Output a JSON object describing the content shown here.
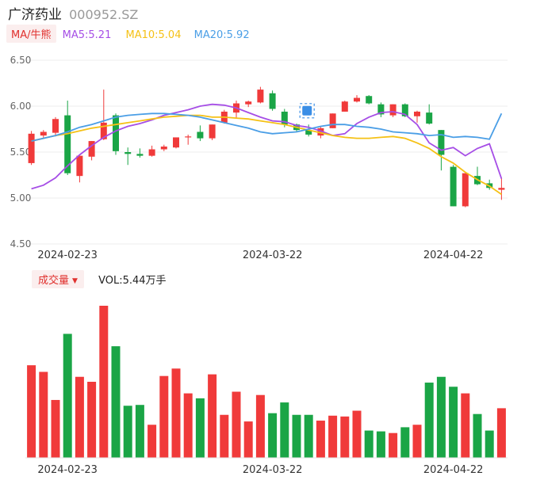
{
  "header": {
    "stock_name": "广济药业",
    "stock_code": "000952.SZ"
  },
  "ma_legend": {
    "selector_label": "MA/牛熊",
    "items": [
      {
        "label": "MA5:5.21",
        "color": "#a64ee6"
      },
      {
        "label": "MA10:5.04",
        "color": "#f5c116"
      },
      {
        "label": "MA20:5.92",
        "color": "#4a9ee6"
      }
    ]
  },
  "volume_panel": {
    "selector_label": "成交量",
    "value_label": "VOL:5.44万手"
  },
  "colors": {
    "up": "#f03a3a",
    "down": "#1aa546",
    "grid": "#eeeeee"
  },
  "chart_data": [
    {
      "type": "candlestick",
      "name": "price",
      "ylim": [
        4.5,
        6.5
      ],
      "yticks": [
        "6.50",
        "6.00",
        "5.50",
        "5.00",
        "4.50"
      ],
      "x_tick_labels": [
        "2024-02-23",
        "2024-03-22",
        "2024-04-22"
      ],
      "x_tick_indices": [
        3,
        20,
        35
      ],
      "candles": [
        {
          "o": 5.38,
          "h": 5.73,
          "l": 5.36,
          "c": 5.7
        },
        {
          "o": 5.68,
          "h": 5.74,
          "l": 5.65,
          "c": 5.72
        },
        {
          "o": 5.71,
          "h": 5.88,
          "l": 5.67,
          "c": 5.86
        },
        {
          "o": 5.9,
          "h": 6.06,
          "l": 5.25,
          "c": 5.27
        },
        {
          "o": 5.24,
          "h": 5.46,
          "l": 5.17,
          "c": 5.46
        },
        {
          "o": 5.45,
          "h": 5.62,
          "l": 5.41,
          "c": 5.62
        },
        {
          "o": 5.64,
          "h": 6.18,
          "l": 5.63,
          "c": 5.82
        },
        {
          "o": 5.9,
          "h": 5.92,
          "l": 5.47,
          "c": 5.51
        },
        {
          "o": 5.5,
          "h": 5.55,
          "l": 5.36,
          "c": 5.48
        },
        {
          "o": 5.48,
          "h": 5.54,
          "l": 5.44,
          "c": 5.46
        },
        {
          "o": 5.46,
          "h": 5.57,
          "l": 5.45,
          "c": 5.53
        },
        {
          "o": 5.53,
          "h": 5.58,
          "l": 5.51,
          "c": 5.56
        },
        {
          "o": 5.55,
          "h": 5.66,
          "l": 5.54,
          "c": 5.66
        },
        {
          "o": 5.67,
          "h": 5.69,
          "l": 5.58,
          "c": 5.67
        },
        {
          "o": 5.72,
          "h": 5.79,
          "l": 5.62,
          "c": 5.65
        },
        {
          "o": 5.65,
          "h": 5.8,
          "l": 5.63,
          "c": 5.8
        },
        {
          "o": 5.82,
          "h": 5.96,
          "l": 5.81,
          "c": 5.94
        },
        {
          "o": 5.93,
          "h": 6.06,
          "l": 5.87,
          "c": 6.03
        },
        {
          "o": 6.02,
          "h": 6.06,
          "l": 5.99,
          "c": 6.05
        },
        {
          "o": 6.04,
          "h": 6.21,
          "l": 6.03,
          "c": 6.18
        },
        {
          "o": 6.14,
          "h": 6.17,
          "l": 5.95,
          "c": 5.97
        },
        {
          "o": 5.94,
          "h": 5.97,
          "l": 5.77,
          "c": 5.8
        },
        {
          "o": 5.8,
          "h": 5.81,
          "l": 5.72,
          "c": 5.74
        },
        {
          "o": 5.74,
          "h": 5.8,
          "l": 5.67,
          "c": 5.69
        },
        {
          "o": 5.68,
          "h": 5.78,
          "l": 5.65,
          "c": 5.76
        },
        {
          "o": 5.76,
          "h": 5.92,
          "l": 5.76,
          "c": 5.92
        },
        {
          "o": 5.94,
          "h": 6.06,
          "l": 5.94,
          "c": 6.05
        },
        {
          "o": 6.05,
          "h": 6.12,
          "l": 6.04,
          "c": 6.09
        },
        {
          "o": 6.11,
          "h": 6.12,
          "l": 6.02,
          "c": 6.03
        },
        {
          "o": 6.02,
          "h": 6.04,
          "l": 5.88,
          "c": 5.91
        },
        {
          "o": 5.9,
          "h": 6.02,
          "l": 5.88,
          "c": 6.02
        },
        {
          "o": 6.02,
          "h": 6.03,
          "l": 5.88,
          "c": 5.89
        },
        {
          "o": 5.89,
          "h": 5.95,
          "l": 5.82,
          "c": 5.94
        },
        {
          "o": 5.93,
          "h": 6.02,
          "l": 5.8,
          "c": 5.81
        },
        {
          "o": 5.74,
          "h": 5.74,
          "l": 5.3,
          "c": 5.47
        },
        {
          "o": 5.34,
          "h": 5.36,
          "l": 4.91,
          "c": 4.91
        },
        {
          "o": 4.91,
          "h": 5.27,
          "l": 4.9,
          "c": 5.27
        },
        {
          "o": 5.24,
          "h": 5.34,
          "l": 5.14,
          "c": 5.15
        },
        {
          "o": 5.16,
          "h": 5.2,
          "l": 5.09,
          "c": 5.11
        },
        {
          "o": 5.09,
          "h": 5.22,
          "l": 4.98,
          "c": 5.11
        }
      ],
      "series": [
        {
          "name": "MA5",
          "color": "#a64ee6",
          "values": [
            5.1,
            5.14,
            5.22,
            5.35,
            5.47,
            5.57,
            5.66,
            5.73,
            5.78,
            5.81,
            5.85,
            5.9,
            5.93,
            5.96,
            6.0,
            6.02,
            6.01,
            5.98,
            5.93,
            5.88,
            5.84,
            5.83,
            5.79,
            5.77,
            5.73,
            5.68,
            5.7,
            5.81,
            5.88,
            5.93,
            5.94,
            5.91,
            5.8,
            5.6,
            5.52,
            5.55,
            5.46,
            5.54,
            5.59,
            5.21
          ]
        },
        {
          "name": "MA10",
          "color": "#f5c116",
          "values": [
            5.62,
            5.65,
            5.68,
            5.7,
            5.73,
            5.76,
            5.78,
            5.8,
            5.82,
            5.84,
            5.86,
            5.88,
            5.89,
            5.9,
            5.9,
            5.88,
            5.88,
            5.87,
            5.86,
            5.84,
            5.82,
            5.8,
            5.77,
            5.74,
            5.71,
            5.68,
            5.66,
            5.65,
            5.65,
            5.66,
            5.67,
            5.65,
            5.6,
            5.54,
            5.45,
            5.38,
            5.28,
            5.2,
            5.13,
            5.04
          ]
        },
        {
          "name": "MA20",
          "color": "#4a9ee6",
          "values": [
            5.62,
            5.65,
            5.68,
            5.72,
            5.77,
            5.8,
            5.84,
            5.88,
            5.9,
            5.91,
            5.92,
            5.92,
            5.91,
            5.9,
            5.88,
            5.85,
            5.82,
            5.79,
            5.76,
            5.72,
            5.7,
            5.71,
            5.72,
            5.75,
            5.78,
            5.8,
            5.8,
            5.78,
            5.77,
            5.75,
            5.72,
            5.71,
            5.7,
            5.68,
            5.69,
            5.66,
            5.67,
            5.66,
            5.64,
            5.92
          ]
        }
      ]
    },
    {
      "type": "bar",
      "name": "volume",
      "x_tick_labels": [
        "2024-02-23",
        "2024-03-22",
        "2024-04-22"
      ],
      "x_tick_indices": [
        3,
        20,
        35
      ],
      "values": [
        112,
        104,
        70,
        150,
        98,
        92,
        184,
        135,
        63,
        64,
        40,
        99,
        108,
        78,
        72,
        101,
        52,
        80,
        44,
        76,
        54,
        67,
        52,
        52,
        45,
        51,
        50,
        57,
        33,
        32,
        30,
        37,
        40,
        91,
        98,
        86,
        78,
        53,
        33,
        60
      ],
      "directions": [
        "up",
        "up",
        "up",
        "down",
        "up",
        "up",
        "up",
        "down",
        "down",
        "down",
        "up",
        "up",
        "up",
        "up",
        "down",
        "up",
        "up",
        "up",
        "up",
        "up",
        "down",
        "down",
        "down",
        "down",
        "up",
        "up",
        "up",
        "up",
        "down",
        "down",
        "up",
        "down",
        "up",
        "down",
        "down",
        "down",
        "up",
        "down",
        "down",
        "up"
      ]
    }
  ]
}
